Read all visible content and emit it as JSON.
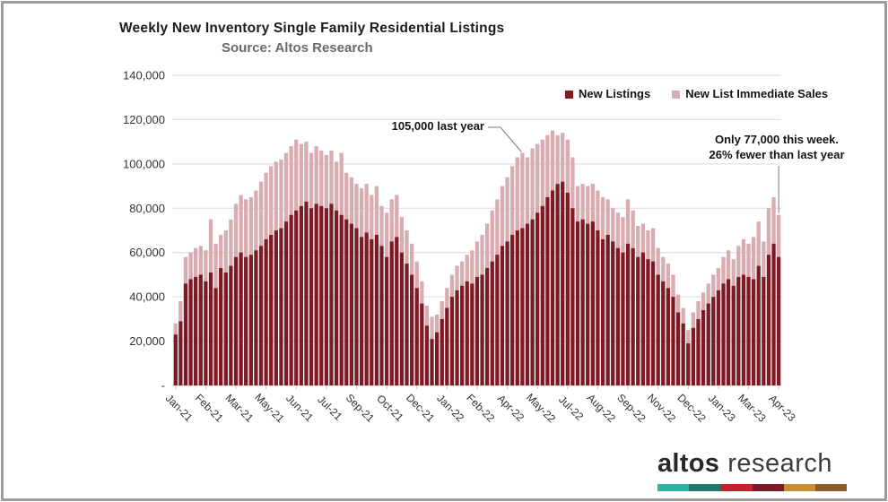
{
  "header": {
    "title": "Weekly New Inventory Single Family Residential Listings",
    "subtitle": "Source: Altos Research"
  },
  "legend": {
    "items": [
      {
        "label": "New Listings",
        "color": "#7D1A24"
      },
      {
        "label": "New List Immediate Sales",
        "color": "#D9ACB2"
      }
    ]
  },
  "annotations": {
    "last_year": {
      "text": "105,000 last year",
      "points_to_week_index": 69
    },
    "this_week": {
      "line1": "Only 77,000 this week.",
      "line2": "26% fewer than last year",
      "points_to_week_index": 120
    }
  },
  "logo": {
    "brand_bold": "altos",
    "brand_light": "research",
    "stripe_colors": [
      "#2EB1A4",
      "#20796C",
      "#C3212F",
      "#7C1A28",
      "#C78B31",
      "#8A5B27"
    ]
  },
  "chart_data": {
    "type": "bar",
    "stacked": true,
    "title": "Weekly New Inventory Single Family Residential Listings",
    "subtitle": "Source: Altos Research",
    "xlabel": "",
    "ylabel": "",
    "grid": "horizontal",
    "legend_position": "top-right",
    "n_weeks": 121,
    "x_range": [
      "Jan-21",
      "Apr-23"
    ],
    "x_tick_labels": [
      {
        "i": 0,
        "label": "Jan-21"
      },
      {
        "i": 6,
        "label": "Feb-21"
      },
      {
        "i": 12,
        "label": "Mar-21"
      },
      {
        "i": 18,
        "label": "May-21"
      },
      {
        "i": 24,
        "label": "Jun-21"
      },
      {
        "i": 30,
        "label": "Jul-21"
      },
      {
        "i": 36,
        "label": "Sep-21"
      },
      {
        "i": 42,
        "label": "Oct-21"
      },
      {
        "i": 48,
        "label": "Dec-21"
      },
      {
        "i": 54,
        "label": "Jan-22"
      },
      {
        "i": 60,
        "label": "Feb-22"
      },
      {
        "i": 66,
        "label": "Apr-22"
      },
      {
        "i": 72,
        "label": "May-22"
      },
      {
        "i": 78,
        "label": "Jul-22"
      },
      {
        "i": 84,
        "label": "Aug-22"
      },
      {
        "i": 90,
        "label": "Sep-22"
      },
      {
        "i": 96,
        "label": "Nov-22"
      },
      {
        "i": 102,
        "label": "Dec-22"
      },
      {
        "i": 108,
        "label": "Jan-23"
      },
      {
        "i": 114,
        "label": "Mar-23"
      },
      {
        "i": 120,
        "label": "Apr-23"
      }
    ],
    "y_axis": {
      "min": 0,
      "max": 140000,
      "tick_interval": 20000,
      "tick_labels": [
        "140,000",
        "120,000",
        "100,000",
        "80,000",
        "60,000",
        "40,000",
        "20,000",
        "-"
      ]
    },
    "series": [
      {
        "name": "New Listings",
        "color": "#7D1A24",
        "values": [
          23000,
          29000,
          46000,
          48000,
          49000,
          50000,
          47000,
          51000,
          44000,
          53000,
          51000,
          54000,
          58000,
          60000,
          58000,
          59000,
          61000,
          63000,
          66000,
          68000,
          70000,
          71000,
          74000,
          77000,
          79000,
          81000,
          83000,
          80000,
          82000,
          81000,
          80000,
          82000,
          79000,
          77000,
          75000,
          73000,
          71000,
          67000,
          69000,
          66000,
          68000,
          63000,
          58000,
          65000,
          67000,
          60000,
          55000,
          50000,
          44000,
          37000,
          27000,
          21000,
          24000,
          30000,
          35000,
          40000,
          43000,
          45000,
          47000,
          46000,
          49000,
          50000,
          53000,
          56000,
          59000,
          63000,
          65000,
          68000,
          70000,
          71000,
          73000,
          75000,
          78000,
          81000,
          85000,
          88000,
          91000,
          92000,
          87000,
          80000,
          74000,
          75000,
          73000,
          74000,
          70000,
          66000,
          68000,
          65000,
          62000,
          60000,
          64000,
          62000,
          58000,
          60000,
          57000,
          56000,
          50000,
          47000,
          44000,
          40000,
          33000,
          28000,
          19000,
          26000,
          30000,
          34000,
          37000,
          40000,
          43000,
          46000,
          48000,
          45000,
          49000,
          50000,
          49000,
          48000,
          54000,
          49000,
          59000,
          64000,
          58000
        ]
      },
      {
        "name": "New List Immediate Sales",
        "color": "#D9ACB2",
        "values": [
          5000,
          9000,
          12000,
          12000,
          13000,
          13000,
          14000,
          24000,
          20000,
          15000,
          19000,
          21000,
          24000,
          26000,
          26000,
          26000,
          27000,
          29000,
          30000,
          31000,
          31000,
          31000,
          31000,
          31000,
          32000,
          28000,
          27000,
          25000,
          26000,
          25000,
          24000,
          24000,
          22000,
          28000,
          21000,
          21000,
          20000,
          22000,
          22000,
          20000,
          22000,
          18000,
          20000,
          19000,
          19000,
          16000,
          15000,
          14000,
          12000,
          10000,
          9000,
          10000,
          8000,
          8000,
          9000,
          10000,
          11000,
          11000,
          12000,
          15000,
          16000,
          18000,
          20000,
          23000,
          25000,
          27000,
          29000,
          31000,
          33000,
          34000,
          30000,
          32000,
          31000,
          30000,
          28000,
          27000,
          22000,
          22000,
          24000,
          23000,
          16000,
          16000,
          17000,
          17000,
          18000,
          19000,
          16000,
          15000,
          16000,
          16000,
          20000,
          17000,
          14000,
          13000,
          13000,
          15000,
          12000,
          11000,
          11000,
          10000,
          8000,
          7000,
          6000,
          7000,
          8000,
          8000,
          9000,
          10000,
          10000,
          12000,
          13000,
          12000,
          14000,
          16000,
          15000,
          19000,
          20000,
          16000,
          21000,
          21000,
          19000
        ]
      }
    ],
    "annotations": [
      "105,000 last year",
      "Only 77,000 this week. 26% fewer than last year"
    ]
  },
  "colors": {
    "grid": "#d9d9d9",
    "axis_text": "#333333",
    "leader_line": "#7a7a7a"
  }
}
